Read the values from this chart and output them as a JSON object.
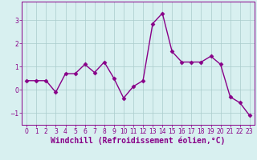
{
  "x": [
    0,
    1,
    2,
    3,
    4,
    5,
    6,
    7,
    8,
    9,
    10,
    11,
    12,
    13,
    14,
    15,
    16,
    17,
    18,
    19,
    20,
    21,
    22,
    23
  ],
  "y": [
    0.4,
    0.4,
    0.4,
    -0.1,
    0.7,
    0.7,
    1.1,
    0.75,
    1.2,
    0.5,
    -0.35,
    0.15,
    0.4,
    2.85,
    3.3,
    1.65,
    1.2,
    1.2,
    1.2,
    1.45,
    1.1,
    -0.3,
    -0.55,
    -1.1
  ],
  "line_color": "#880088",
  "marker": "D",
  "markersize": 2.5,
  "bg_color": "#d8f0f0",
  "grid_color": "#aacccc",
  "xlabel": "Windchill (Refroidissement éolien,°C)",
  "xlabel_color": "#880088",
  "ylim": [
    -1.5,
    3.8
  ],
  "xlim": [
    -0.5,
    23.5
  ],
  "yticks": [
    -1,
    0,
    1,
    2,
    3
  ],
  "xticks": [
    0,
    1,
    2,
    3,
    4,
    5,
    6,
    7,
    8,
    9,
    10,
    11,
    12,
    13,
    14,
    15,
    16,
    17,
    18,
    19,
    20,
    21,
    22,
    23
  ],
  "tick_color": "#880088",
  "tick_labelsize": 5.5,
  "xlabel_fontsize": 7.0,
  "linewidth": 1.0
}
